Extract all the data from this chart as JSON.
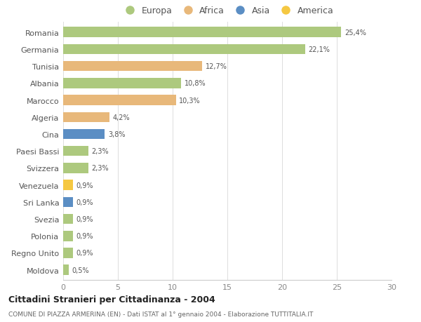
{
  "countries": [
    "Romania",
    "Germania",
    "Tunisia",
    "Albania",
    "Marocco",
    "Algeria",
    "Cina",
    "Paesi Bassi",
    "Svizzera",
    "Venezuela",
    "Sri Lanka",
    "Svezia",
    "Polonia",
    "Regno Unito",
    "Moldova"
  ],
  "values": [
    25.4,
    22.1,
    12.7,
    10.8,
    10.3,
    4.2,
    3.8,
    2.3,
    2.3,
    0.9,
    0.9,
    0.9,
    0.9,
    0.9,
    0.5
  ],
  "labels": [
    "25,4%",
    "22,1%",
    "12,7%",
    "10,8%",
    "10,3%",
    "4,2%",
    "3,8%",
    "2,3%",
    "2,3%",
    "0,9%",
    "0,9%",
    "0,9%",
    "0,9%",
    "0,9%",
    "0,5%"
  ],
  "continents": [
    "Europa",
    "Europa",
    "Africa",
    "Europa",
    "Africa",
    "Africa",
    "Asia",
    "Europa",
    "Europa",
    "America",
    "Asia",
    "Europa",
    "Europa",
    "Europa",
    "Europa"
  ],
  "colors": {
    "Europa": "#adc97e",
    "Africa": "#e8b87a",
    "Asia": "#5b8ec4",
    "America": "#f5c842"
  },
  "title": "Cittadini Stranieri per Cittadinanza - 2004",
  "subtitle": "COMUNE DI PIAZZA ARMERINA (EN) - Dati ISTAT al 1° gennaio 2004 - Elaborazione TUTTITALIA.IT",
  "xlim": [
    0,
    30
  ],
  "xticks": [
    0,
    5,
    10,
    15,
    20,
    25,
    30
  ],
  "background_color": "#ffffff",
  "bar_height": 0.6,
  "legend_order": [
    "Europa",
    "Africa",
    "Asia",
    "America"
  ]
}
